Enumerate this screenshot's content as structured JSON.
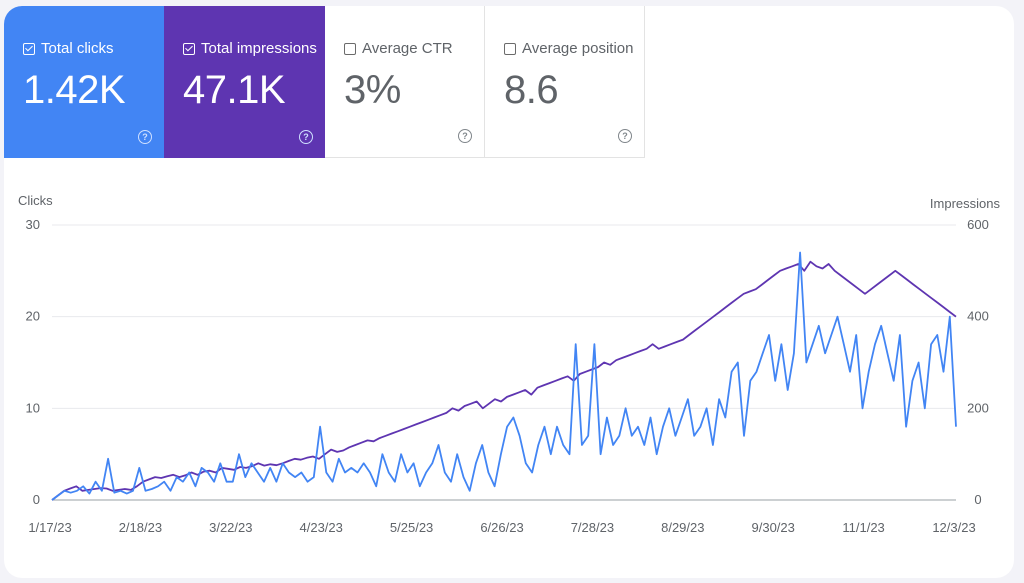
{
  "metrics": [
    {
      "label": "Total clicks",
      "value": "1.42K",
      "checked": true,
      "color": "#4285f4"
    },
    {
      "label": "Total impressions",
      "value": "47.1K",
      "checked": true,
      "color": "#5e35b1"
    },
    {
      "label": "Average CTR",
      "value": "3%",
      "checked": false
    },
    {
      "label": "Average position",
      "value": "8.6",
      "checked": false
    }
  ],
  "help_glyph": "?",
  "chart_data": {
    "type": "line",
    "ylabel_left": "Clicks",
    "ylabel_right": "Impressions",
    "ylim_left": [
      0,
      30
    ],
    "ylim_right": [
      0,
      600
    ],
    "yticks_left": [
      "0",
      "10",
      "20",
      "30"
    ],
    "yticks_right": [
      "0",
      "200",
      "400",
      "600"
    ],
    "x_ticks": [
      "1/17/23",
      "2/18/23",
      "3/22/23",
      "4/23/23",
      "5/25/23",
      "6/26/23",
      "7/28/23",
      "8/29/23",
      "9/30/23",
      "11/1/23",
      "12/3/23"
    ],
    "grid": true,
    "series": [
      {
        "name": "Clicks",
        "axis": "left",
        "color": "#4285f4",
        "values": [
          0,
          0.5,
          1,
          0.8,
          1,
          1.5,
          0.7,
          2,
          1,
          4.5,
          0.8,
          1,
          0.7,
          1,
          3.5,
          1,
          1.2,
          1.5,
          2,
          1,
          2.5,
          2,
          3,
          1.5,
          3.5,
          3,
          2,
          4,
          2,
          2,
          5,
          2.5,
          4,
          3,
          2,
          3.5,
          2,
          4,
          3,
          2.5,
          3,
          2,
          2.5,
          8,
          3,
          2,
          4.5,
          3,
          3.5,
          3,
          4,
          3,
          1.5,
          5,
          3,
          2,
          5,
          3,
          4,
          1.5,
          3,
          4,
          6,
          3,
          2,
          5,
          2.5,
          1,
          4,
          6,
          3,
          1.5,
          5,
          8,
          9,
          7,
          4,
          3,
          6,
          8,
          5,
          8,
          6,
          5,
          17,
          6,
          7,
          17,
          5,
          9,
          6,
          7,
          10,
          7,
          8,
          6,
          9,
          5,
          8,
          10,
          7,
          9,
          11,
          7,
          8,
          10,
          6,
          11,
          9,
          14,
          15,
          7,
          13,
          14,
          16,
          18,
          13,
          17,
          12,
          16,
          27,
          15,
          17,
          19,
          16,
          18,
          20,
          17,
          14,
          18,
          10,
          14,
          17,
          19,
          16,
          13,
          18,
          8,
          13,
          15,
          10,
          17,
          18,
          14,
          20,
          8
        ]
      },
      {
        "name": "Impressions",
        "axis": "right",
        "color": "#5e35b1",
        "values": [
          0,
          10,
          20,
          25,
          30,
          20,
          22,
          24,
          26,
          25,
          20,
          22,
          24,
          22,
          30,
          40,
          45,
          50,
          48,
          52,
          55,
          50,
          54,
          60,
          55,
          62,
          64,
          60,
          70,
          68,
          66,
          72,
          70,
          74,
          80,
          75,
          78,
          76,
          80,
          85,
          90,
          88,
          92,
          95,
          90,
          100,
          110,
          105,
          108,
          115,
          120,
          125,
          130,
          128,
          135,
          140,
          145,
          150,
          155,
          160,
          165,
          170,
          175,
          180,
          185,
          190,
          200,
          195,
          205,
          210,
          215,
          200,
          210,
          220,
          215,
          225,
          230,
          235,
          240,
          230,
          245,
          250,
          255,
          260,
          265,
          270,
          260,
          275,
          280,
          285,
          290,
          300,
          295,
          305,
          310,
          315,
          320,
          325,
          330,
          340,
          330,
          335,
          340,
          345,
          350,
          360,
          370,
          380,
          390,
          400,
          410,
          420,
          430,
          440,
          450,
          455,
          460,
          470,
          480,
          490,
          500,
          505,
          510,
          515,
          500,
          520,
          510,
          505,
          515,
          500,
          490,
          480,
          470,
          460,
          450,
          460,
          470,
          480,
          490,
          500,
          490,
          480,
          470,
          460,
          450,
          440,
          430,
          420,
          410,
          400
        ]
      }
    ]
  }
}
